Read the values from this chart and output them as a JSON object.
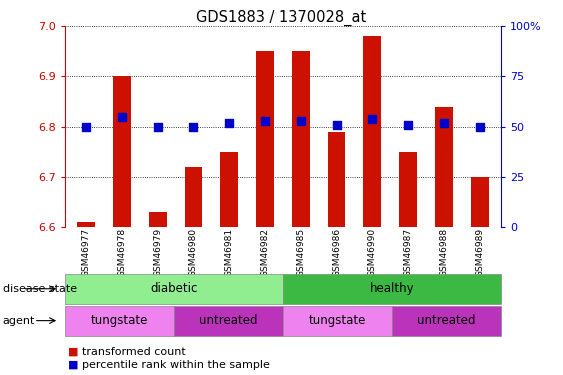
{
  "title": "GDS1883 / 1370028_at",
  "samples": [
    "GSM46977",
    "GSM46978",
    "GSM46979",
    "GSM46980",
    "GSM46981",
    "GSM46982",
    "GSM46985",
    "GSM46986",
    "GSM46990",
    "GSM46987",
    "GSM46988",
    "GSM46989"
  ],
  "transformed_count": [
    6.61,
    6.9,
    6.63,
    6.72,
    6.75,
    6.95,
    6.95,
    6.79,
    6.98,
    6.75,
    6.84,
    6.7
  ],
  "percentile_rank": [
    50,
    55,
    50,
    50,
    52,
    53,
    53,
    51,
    54,
    51,
    52,
    50
  ],
  "ylim_left": [
    6.6,
    7.0
  ],
  "ylim_right": [
    0,
    100
  ],
  "yticks_left": [
    6.6,
    6.7,
    6.8,
    6.9,
    7.0
  ],
  "yticks_right": [
    0,
    25,
    50,
    75,
    100
  ],
  "color_diabetic": "#90EE90",
  "color_healthy": "#3CB943",
  "color_tungstate_light": "#EE82EE",
  "color_tungstate_dark": "#CC55CC",
  "color_untreated_light": "#CC44CC",
  "color_untreated_dark": "#BB33BB",
  "color_bar": "#CC1100",
  "color_dot": "#0000CC",
  "bar_width": 0.5,
  "dot_size": 35,
  "label_color_left": "#CC0000",
  "label_color_right": "#0000CC",
  "agent_groups": [
    [
      0,
      3,
      "tungstate"
    ],
    [
      3,
      6,
      "untreated"
    ],
    [
      6,
      9,
      "tungstate"
    ],
    [
      9,
      12,
      "untreated"
    ]
  ],
  "disease_groups": [
    [
      0,
      6,
      "diabetic"
    ],
    [
      6,
      12,
      "healthy"
    ]
  ]
}
